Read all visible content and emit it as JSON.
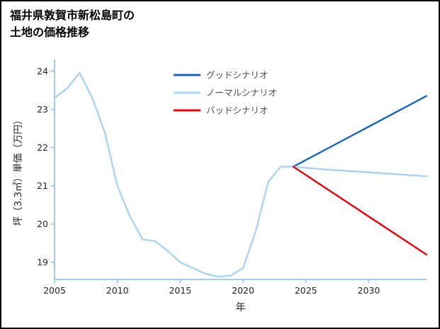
{
  "title": {
    "line1": "福井県敦賀市新松島町の",
    "line2": "土地の価格推移"
  },
  "chart_data": {
    "type": "line",
    "title": "福井県敦賀市新松島町の土地の価格推移",
    "xlabel": "年",
    "ylabel": "坪（3.3㎡）単価（万円）",
    "xlim": [
      2005,
      2034.6
    ],
    "ylim": [
      18.55,
      24.25
    ],
    "xticks": [
      2005,
      2010,
      2015,
      2020,
      2025,
      2030
    ],
    "yticks": [
      19,
      20,
      21,
      22,
      23,
      24
    ],
    "grid": false,
    "legend_position": "upper-center-inside",
    "colors": {
      "axis": "#9fccf3",
      "tick_label": "#262626",
      "legend_text": "#4d4d4d",
      "good": "#1565c0",
      "normal": "#a9d3f2",
      "bad": "#e8000d"
    },
    "legend": [
      {
        "label": "グッドシナリオ",
        "series": "good"
      },
      {
        "label": "ノーマルシナリオ",
        "series": "normal"
      },
      {
        "label": "バッドシナリオ",
        "series": "bad"
      }
    ],
    "series": [
      {
        "name": "price-history",
        "color_key": "normal",
        "x": [
          2005,
          2006,
          2007,
          2008,
          2009,
          2010,
          2011,
          2012,
          2013,
          2014,
          2015,
          2016,
          2017,
          2018,
          2019,
          2020,
          2021,
          2022,
          2023,
          2024
        ],
        "y": [
          23.3,
          23.55,
          23.95,
          23.3,
          22.4,
          21.0,
          20.2,
          19.6,
          19.55,
          19.3,
          19.0,
          18.85,
          18.7,
          18.62,
          18.65,
          18.85,
          19.8,
          21.1,
          21.5,
          21.5
        ]
      },
      {
        "name": "good-scenario",
        "color_key": "good",
        "x": [
          2024,
          2034.6
        ],
        "y": [
          21.5,
          23.35
        ]
      },
      {
        "name": "normal-scenario",
        "color_key": "normal",
        "x": [
          2024,
          2026,
          2034.6
        ],
        "y": [
          21.5,
          21.44,
          21.25
        ]
      },
      {
        "name": "bad-scenario",
        "color_key": "bad",
        "x": [
          2024,
          2034.6
        ],
        "y": [
          21.5,
          19.2
        ]
      }
    ]
  }
}
